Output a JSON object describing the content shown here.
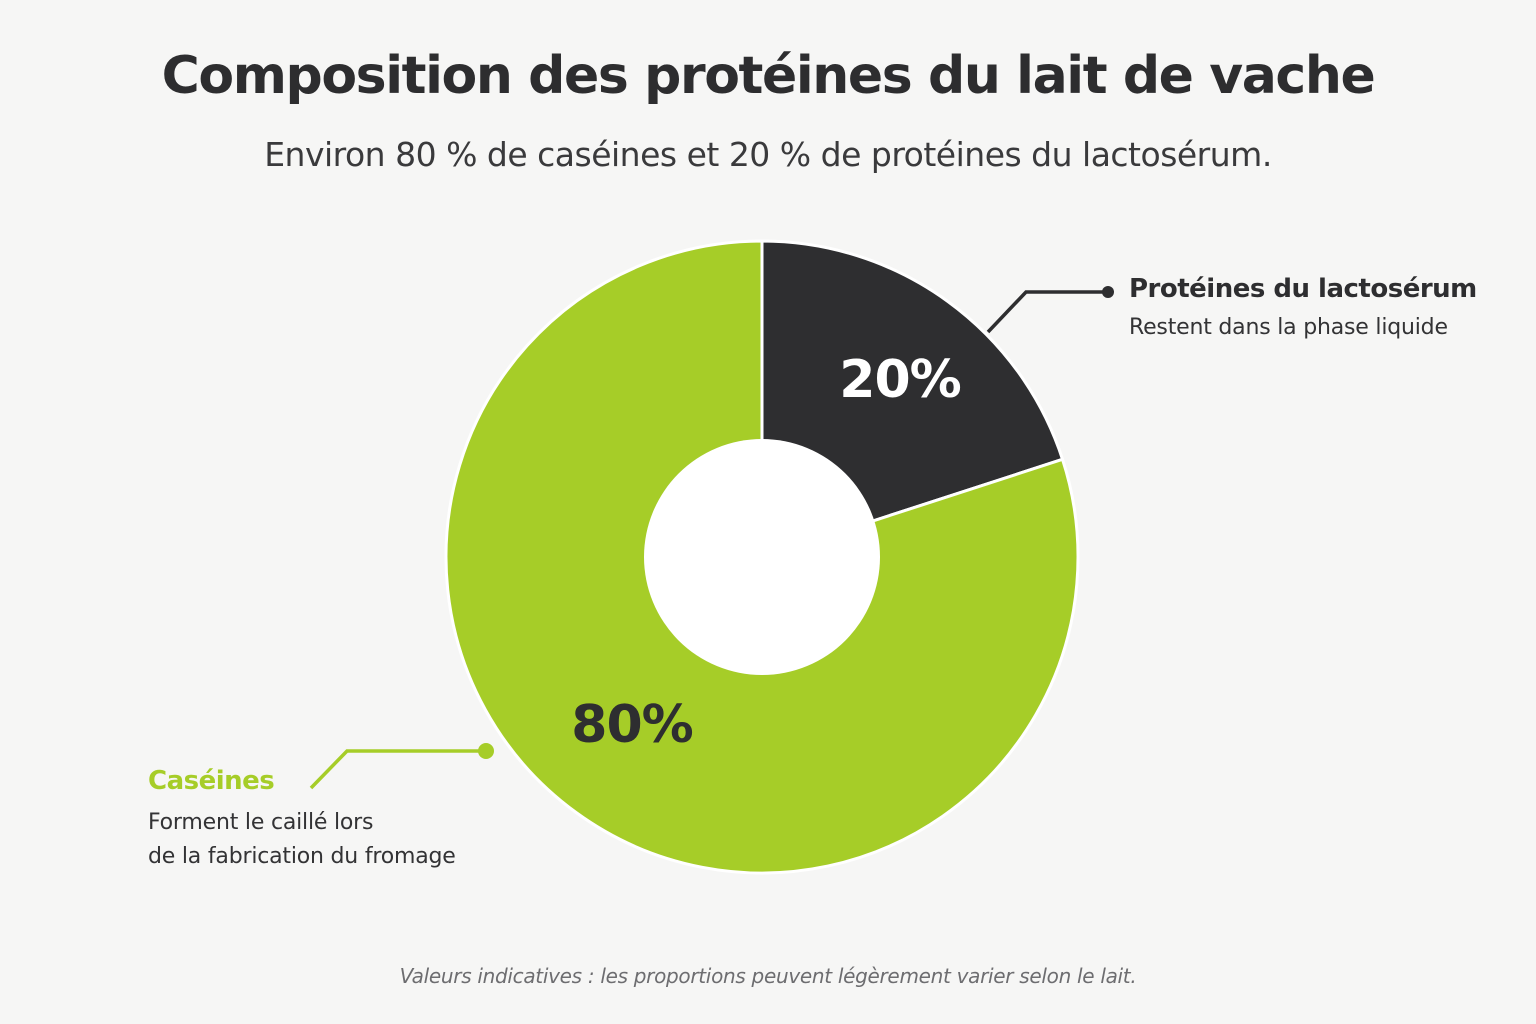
{
  "title": "Composition des protéines du lait de vache",
  "subtitle": "Environ 80 % de caséines et 20 % de protéines du lactosérum.",
  "note": "Valeurs indicatives : les proportions peuvent légèrement varier selon le lait.",
  "colors": {
    "background": "#f6f6f5",
    "caseins": "#a6cd28",
    "whey": "#2e2e30",
    "hole": "#ffffff"
  },
  "legend": {
    "whey": {
      "title": "Protéines du lactosérum",
      "description": "Restent dans la phase liquide"
    },
    "caseins": {
      "title": "Caséines",
      "description_lines": [
        "Forment le caillé lors",
        "de la fabrication du fromage"
      ]
    }
  },
  "chart_data": {
    "type": "pie",
    "variant": "donut",
    "title": "Composition des protéines du lait de vache",
    "subtitle": "Environ 80 % de caséines et 20 % de protéines du lactosérum.",
    "unit": "%",
    "slices": [
      {
        "label": "Protéines du lactosérum",
        "value": 20,
        "value_label": "20%",
        "color": "#2e2e30"
      },
      {
        "label": "Caséines",
        "value": 80,
        "value_label": "80%",
        "color": "#a6cd28"
      }
    ]
  }
}
